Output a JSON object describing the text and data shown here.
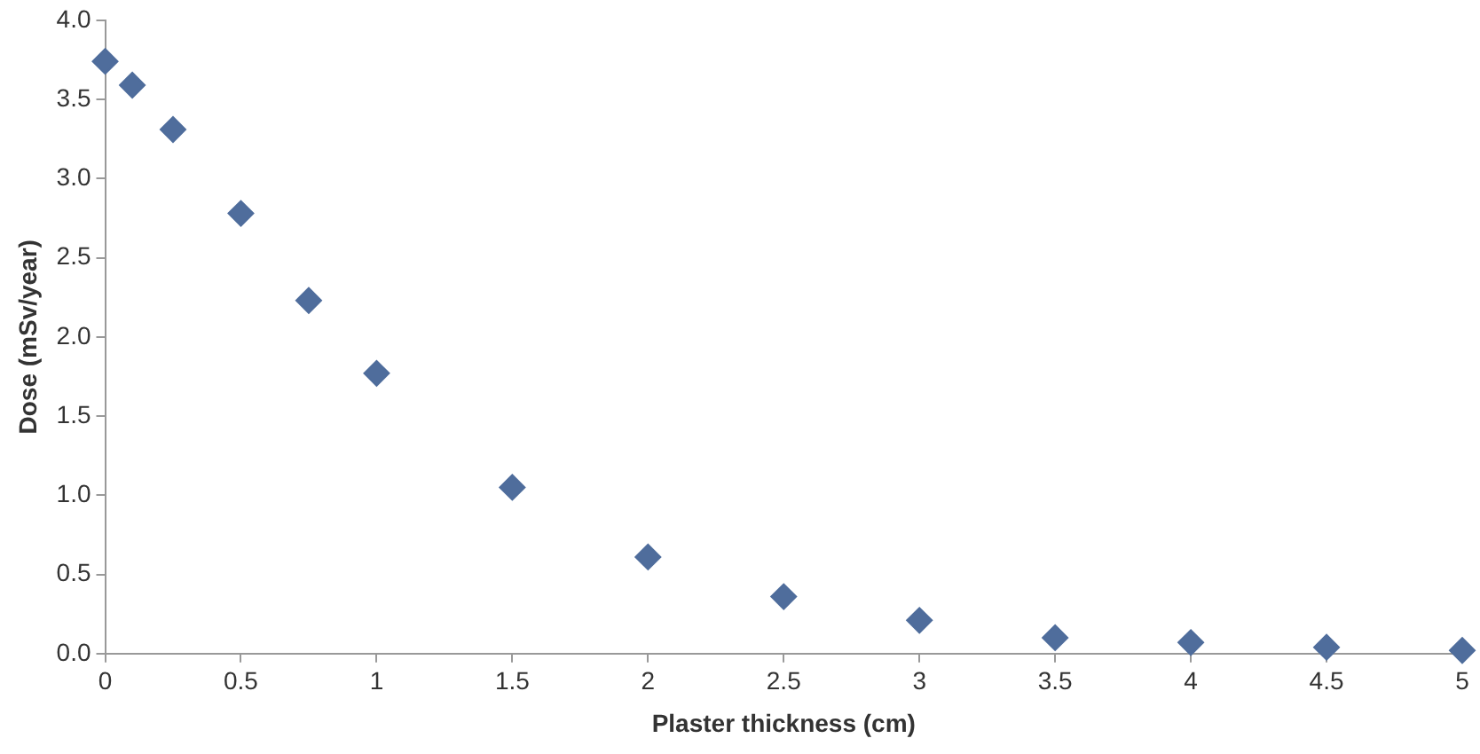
{
  "chart_data": {
    "type": "scatter",
    "xlabel": "Plaster thickness (cm)",
    "ylabel": "Dose (mSv/year)",
    "x": [
      0,
      0.1,
      0.25,
      0.5,
      0.75,
      1,
      1.5,
      2,
      2.5,
      3,
      3.5,
      4,
      4.5,
      5
    ],
    "values": [
      3.74,
      3.59,
      3.31,
      2.78,
      2.23,
      1.77,
      1.05,
      0.61,
      0.36,
      0.21,
      0.1,
      0.07,
      0.04,
      0.02
    ],
    "color": "#4f6d9c",
    "marker": "diamond",
    "grid": false,
    "legend": false,
    "xlim": [
      0,
      5
    ],
    "xticks": [
      0,
      0.5,
      1,
      1.5,
      2,
      2.5,
      3,
      3.5,
      4,
      4.5,
      5
    ],
    "ylim": [
      0,
      4
    ],
    "yticks": [
      {
        "value": 0,
        "label": "0.0"
      },
      {
        "value": 0.5,
        "label": "0.5"
      },
      {
        "value": 1,
        "label": "1.0"
      },
      {
        "value": 1.5,
        "label": "1.5"
      },
      {
        "value": 2,
        "label": "2.0"
      },
      {
        "value": 2.5,
        "label": "2.5"
      },
      {
        "value": 3,
        "label": "3.0"
      },
      {
        "value": 3.5,
        "label": "3.5"
      },
      {
        "value": 4,
        "label": "4.0"
      }
    ]
  }
}
